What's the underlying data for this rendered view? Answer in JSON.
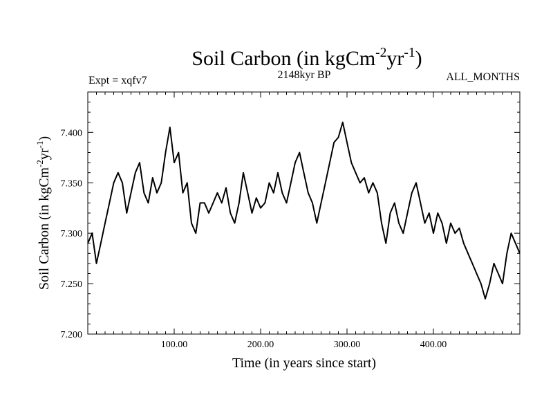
{
  "chart_data": {
    "type": "line",
    "title": {
      "main": "Soil Carbon (in kgCm",
      "exp1": "-2",
      "mid": "yr",
      "exp2": "-1",
      "end": ")"
    },
    "experiment_label": "Expt = xqfv7",
    "period_label": "2148kyr BP",
    "months_label": "ALL_MONTHS",
    "xlabel": "Time (in years since start)",
    "ylabel": {
      "main": "Soil Carbon (in kgCm",
      "exp1": "-2",
      "mid": "yr",
      "exp2": "-1",
      "end": ")"
    },
    "xlim": [
      0,
      500
    ],
    "ylim": [
      7.2,
      7.44
    ],
    "x_ticks": [
      100,
      200,
      300,
      400
    ],
    "x_tick_labels": [
      "100.00",
      "200.00",
      "300.00",
      "400.00"
    ],
    "y_ticks": [
      7.2,
      7.25,
      7.3,
      7.35,
      7.4
    ],
    "y_tick_labels": [
      "7.200",
      "7.250",
      "7.300",
      "7.350",
      "7.400"
    ],
    "line_color": "#000000",
    "series": [
      {
        "name": "Soil Carbon",
        "x": [
          0,
          5,
          10,
          15,
          20,
          25,
          30,
          35,
          40,
          45,
          50,
          55,
          60,
          65,
          70,
          75,
          80,
          85,
          90,
          95,
          100,
          105,
          110,
          115,
          120,
          125,
          130,
          135,
          140,
          145,
          150,
          155,
          160,
          165,
          170,
          175,
          180,
          185,
          190,
          195,
          200,
          205,
          210,
          215,
          220,
          225,
          230,
          235,
          240,
          245,
          250,
          255,
          260,
          265,
          270,
          275,
          280,
          285,
          290,
          295,
          300,
          305,
          310,
          315,
          320,
          325,
          330,
          335,
          340,
          345,
          350,
          355,
          360,
          365,
          370,
          375,
          380,
          385,
          390,
          395,
          400,
          405,
          410,
          415,
          420,
          425,
          430,
          435,
          440,
          445,
          450,
          455,
          460,
          465,
          470,
          475,
          480,
          485,
          490,
          495,
          500
        ],
        "values": [
          7.29,
          7.3,
          7.27,
          7.29,
          7.31,
          7.33,
          7.35,
          7.36,
          7.35,
          7.32,
          7.34,
          7.36,
          7.37,
          7.34,
          7.33,
          7.355,
          7.34,
          7.35,
          7.38,
          7.405,
          7.37,
          7.38,
          7.34,
          7.35,
          7.31,
          7.3,
          7.33,
          7.33,
          7.32,
          7.33,
          7.34,
          7.33,
          7.345,
          7.32,
          7.31,
          7.33,
          7.36,
          7.34,
          7.32,
          7.335,
          7.325,
          7.33,
          7.35,
          7.34,
          7.36,
          7.34,
          7.33,
          7.35,
          7.37,
          7.38,
          7.36,
          7.34,
          7.33,
          7.31,
          7.33,
          7.35,
          7.37,
          7.39,
          7.395,
          7.41,
          7.39,
          7.37,
          7.36,
          7.35,
          7.355,
          7.34,
          7.35,
          7.34,
          7.31,
          7.29,
          7.32,
          7.33,
          7.31,
          7.3,
          7.32,
          7.34,
          7.35,
          7.33,
          7.31,
          7.32,
          7.3,
          7.32,
          7.31,
          7.29,
          7.31,
          7.3,
          7.305,
          7.29,
          7.28,
          7.27,
          7.26,
          7.25,
          7.235,
          7.25,
          7.27,
          7.26,
          7.25,
          7.28,
          7.3,
          7.29,
          7.28
        ]
      }
    ]
  }
}
